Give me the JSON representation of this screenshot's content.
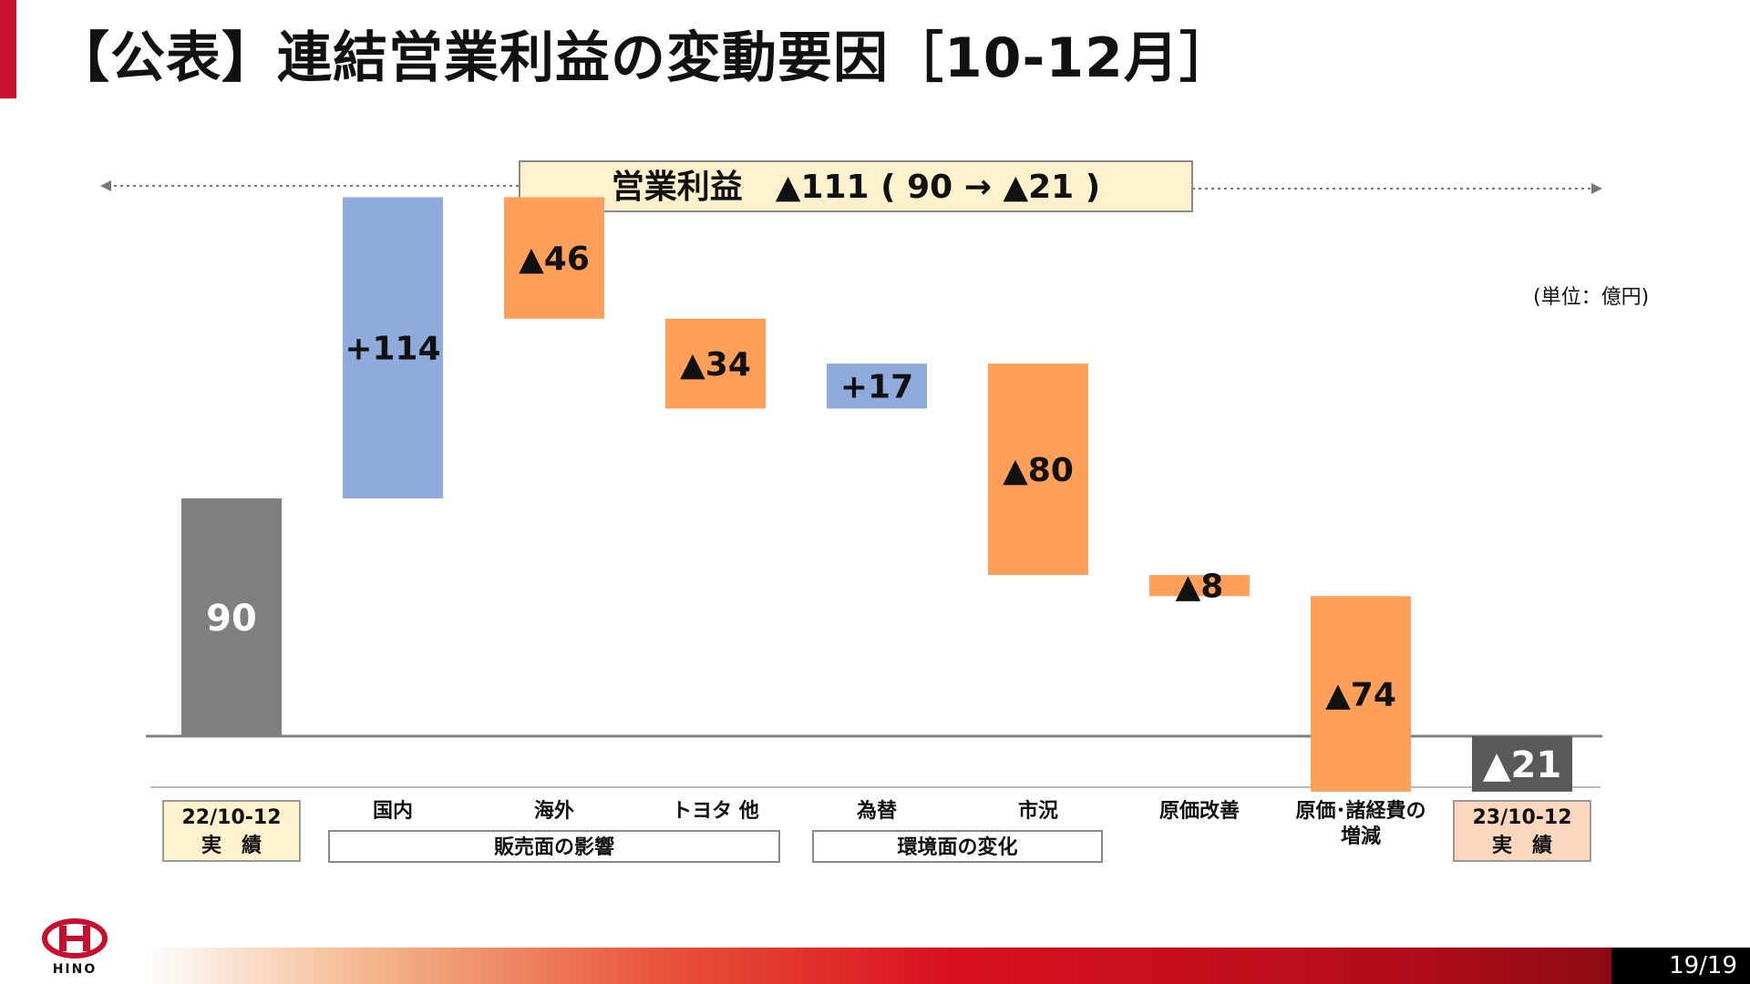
{
  "page": {
    "title": "【公表】連結営業利益の変動要因［10-12月］",
    "page_number": "19/19",
    "logo_text": "HINO"
  },
  "chart_data": {
    "type": "waterfall",
    "unit_label": "(単位：億円)",
    "summary": "営業利益　▲111 ( 90 → ▲21 )",
    "colors": {
      "total": "#7f7f7f",
      "total_end": "#595959",
      "increase": "#8faadc",
      "decrease": "#ffa05a",
      "summary_fill": "#fff2cc",
      "start_label_fill": "#fff2cc",
      "end_label_fill": "#fad7bd"
    },
    "steps": [
      {
        "label": "22/10-12\n実　績",
        "kind": "total",
        "value": 90,
        "display": "90"
      },
      {
        "label": "国内",
        "kind": "delta",
        "value": 114,
        "display": "+114"
      },
      {
        "label": "海外",
        "kind": "delta",
        "value": -46,
        "display": "▲46"
      },
      {
        "label": "トヨタ 他",
        "kind": "delta",
        "value": -34,
        "display": "▲34"
      },
      {
        "label": "為替",
        "kind": "delta",
        "value": 17,
        "display": "+17"
      },
      {
        "label": "市況",
        "kind": "delta",
        "value": -80,
        "display": "▲80"
      },
      {
        "label": "原価改善",
        "kind": "delta",
        "value": -8,
        "display": "▲8"
      },
      {
        "label": "原価･諸経費の\n増減",
        "kind": "delta",
        "value": -74,
        "display": "▲74"
      },
      {
        "label": "23/10-12\n実　績",
        "kind": "total",
        "value": -21,
        "display": "▲21"
      }
    ],
    "groups": [
      {
        "label": "販売面の影響",
        "from": 1,
        "to": 3
      },
      {
        "label": "環境面の変化",
        "from": 4,
        "to": 5
      }
    ]
  }
}
